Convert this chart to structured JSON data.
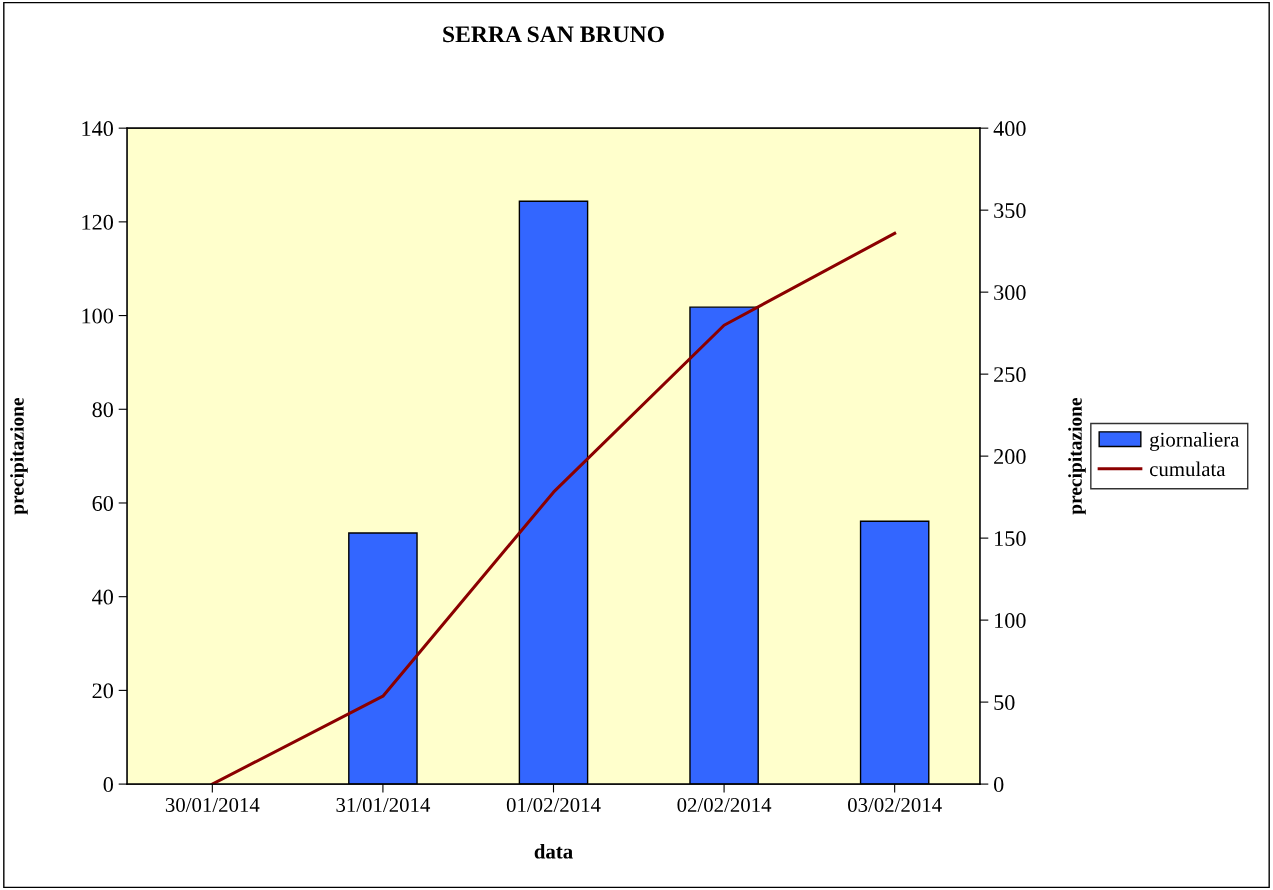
{
  "chart_data": {
    "type": "bar",
    "title": "SERRA SAN BRUNO",
    "xlabel": "data",
    "ylabel": "precipitazione",
    "y2label": "precipitazione",
    "categories": [
      "30/01/2014",
      "31/01/2014",
      "01/02/2014",
      "02/02/2014",
      "03/02/2014"
    ],
    "series": [
      {
        "name": "giornaliera",
        "color": "#3366ff",
        "values": [
          null,
          53.6,
          124.4,
          101.8,
          56.1
        ]
      },
      {
        "name": "cumulata",
        "type": "line",
        "axis": "y2",
        "color": "#8b0000",
        "values": [
          0,
          53.6,
          178,
          279.8,
          335.9
        ]
      }
    ],
    "ylim": [
      0,
      140
    ],
    "yticks": [
      0,
      20,
      40,
      60,
      80,
      100,
      120,
      140
    ],
    "y2lim": [
      0,
      400
    ],
    "y2ticks": [
      0,
      50,
      100,
      150,
      200,
      250,
      300,
      350,
      400
    ],
    "grid": false,
    "legend": "right",
    "marker": "none",
    "line_style": "solid"
  }
}
